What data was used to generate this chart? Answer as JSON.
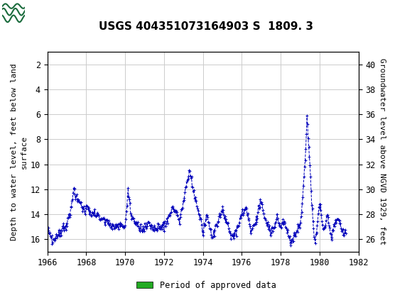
{
  "title": "USGS 404351073164903 S  1809. 3",
  "ylabel_left": "Depth to water level, feet below land\nsurface",
  "ylabel_right": "Groundwater level above NGVD 1929, feet",
  "ylim_left": [
    17.0,
    1.0
  ],
  "ylim_right": [
    25.0,
    41.0
  ],
  "xlim": [
    1966.0,
    1982.0
  ],
  "xticks": [
    1966,
    1968,
    1970,
    1972,
    1974,
    1976,
    1978,
    1980,
    1982
  ],
  "yticks_left": [
    2,
    4,
    6,
    8,
    10,
    12,
    14,
    16
  ],
  "yticks_right": [
    26,
    28,
    30,
    32,
    34,
    36,
    38,
    40
  ],
  "line_color": "#0000BB",
  "marker": "+",
  "linestyle": "--",
  "header_bg": "#1a6b3c",
  "legend_label": "Period of approved data",
  "legend_color": "#22AA22",
  "background_color": "#ffffff",
  "grid_color": "#cccccc",
  "title_fontsize": 11,
  "axis_label_fontsize": 8,
  "tick_fontsize": 8.5
}
